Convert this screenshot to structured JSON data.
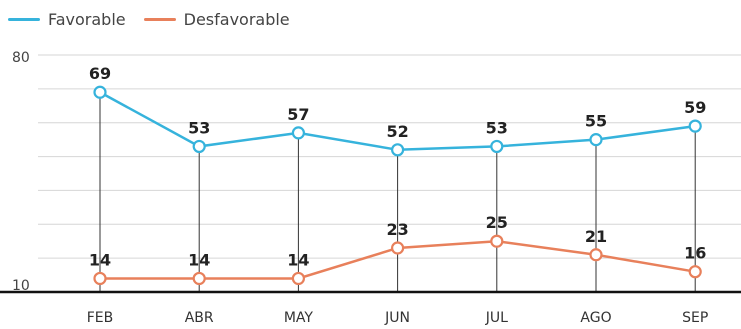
{
  "colors": {
    "favorable": "#36B3DC",
    "desfavorable": "#E8805B",
    "grid": "#D6D6D6",
    "drop_line": "#333333",
    "axis": "#111111"
  },
  "legend": [
    {
      "label": "Favorable",
      "color_key": "favorable"
    },
    {
      "label": "Desfavorable",
      "color_key": "desfavorable"
    }
  ],
  "chart_data": {
    "type": "line",
    "categories": [
      "FEB",
      "ABR",
      "MAY",
      "JUN",
      "JUL",
      "AGO",
      "SEP"
    ],
    "series": [
      {
        "name": "Favorable",
        "values": [
          69,
          53,
          57,
          52,
          53,
          55,
          59
        ]
      },
      {
        "name": "Desfavorable",
        "values": [
          14,
          14,
          14,
          23,
          25,
          21,
          16
        ]
      }
    ],
    "ylim": [
      10,
      80
    ],
    "y_ticks_labeled": [
      "80",
      "10"
    ],
    "y_gridlines": [
      20,
      30,
      40,
      50,
      60,
      70,
      80
    ],
    "legend_position": "top-left",
    "grid": true
  }
}
